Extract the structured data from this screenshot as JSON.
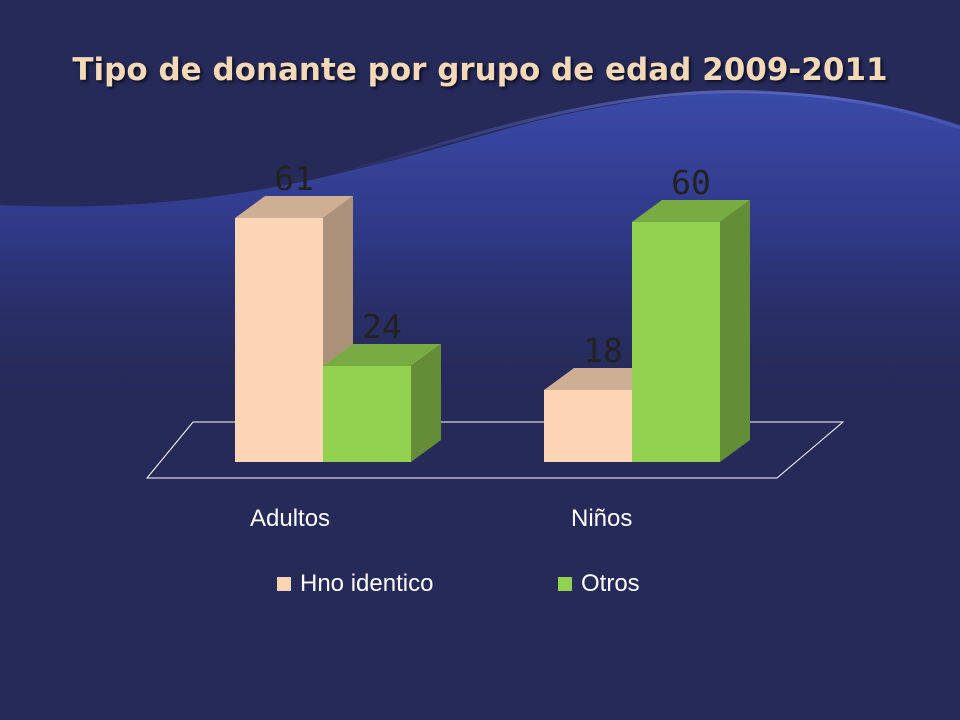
{
  "slide": {
    "title": "Tipo de donante por grupo de edad 2009-2011"
  },
  "chart_data": {
    "type": "bar",
    "categories": [
      "Adultos",
      "Niños"
    ],
    "series": [
      {
        "name": "Hno identico",
        "values": [
          61,
          18
        ],
        "color": "#fcd5b4"
      },
      {
        "name": "Otros",
        "values": [
          24,
          60
        ],
        "color": "#92d050"
      }
    ],
    "title": "Tipo de donante por grupo de edad 2009-2011",
    "xlabel": "",
    "ylabel": "",
    "ylim": [
      0,
      70
    ],
    "grid": false,
    "legend": "bottom",
    "style": "3d-clustered-column"
  }
}
